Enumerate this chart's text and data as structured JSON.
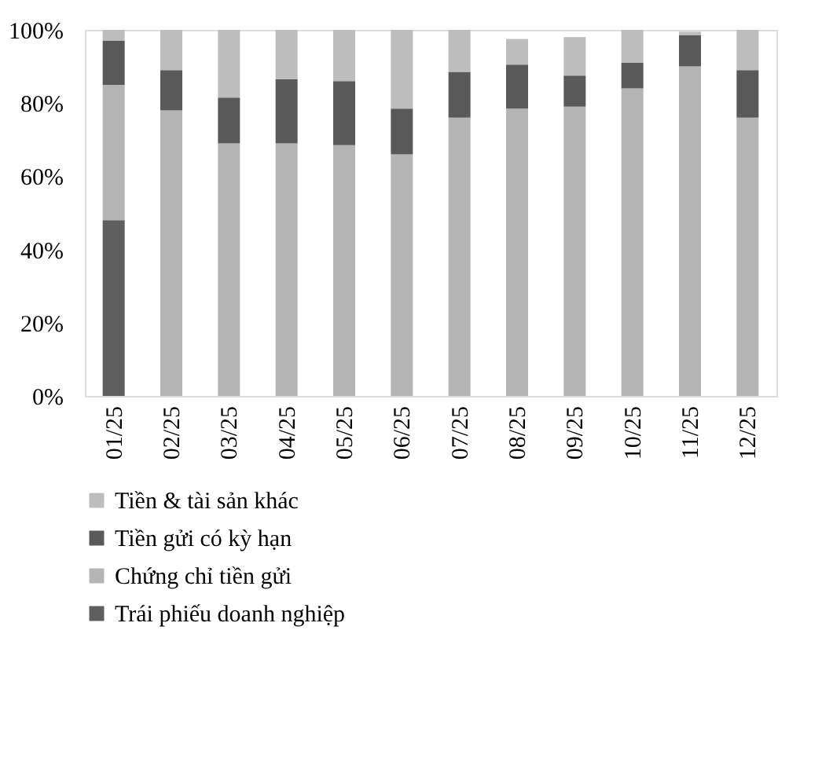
{
  "chart_data": {
    "type": "bar",
    "stacked": true,
    "categories": [
      "01/25",
      "02/25",
      "03/25",
      "04/25",
      "05/25",
      "06/25",
      "07/25",
      "08/25",
      "09/25",
      "10/25",
      "11/25",
      "12/25"
    ],
    "series": [
      {
        "name": "Trái phiếu doanh nghiệp",
        "color": "#5e5e5e",
        "values": [
          48,
          null,
          null,
          null,
          null,
          null,
          null,
          null,
          null,
          null,
          null,
          null
        ]
      },
      {
        "name": "Chứng chỉ tiền gửi",
        "color": "#b4b4b4",
        "values": [
          37,
          78,
          69,
          69,
          68.5,
          66,
          76,
          78.5,
          79,
          84,
          90,
          76
        ]
      },
      {
        "name": "Tiền gửi có kỳ hạn",
        "color": "#595959",
        "values": [
          12,
          11,
          12.5,
          17.5,
          17.5,
          12.5,
          12.5,
          12,
          8.5,
          7,
          8.5,
          13
        ]
      },
      {
        "name": "Tiền & tài sản khác",
        "color": "#bdbdbd",
        "values": [
          3,
          11,
          18.5,
          13.5,
          14,
          21.5,
          11.5,
          7,
          10.5,
          9,
          1,
          11
        ]
      }
    ],
    "ylim": [
      0,
      100
    ],
    "yticks": [
      {
        "value": 0,
        "label": "0%"
      },
      {
        "value": 20,
        "label": "20%"
      },
      {
        "value": 40,
        "label": "40%"
      },
      {
        "value": 60,
        "label": "60%"
      },
      {
        "value": 80,
        "label": "80%"
      },
      {
        "value": 100,
        "label": "100%"
      }
    ],
    "grid": false,
    "legend": "bottom"
  }
}
